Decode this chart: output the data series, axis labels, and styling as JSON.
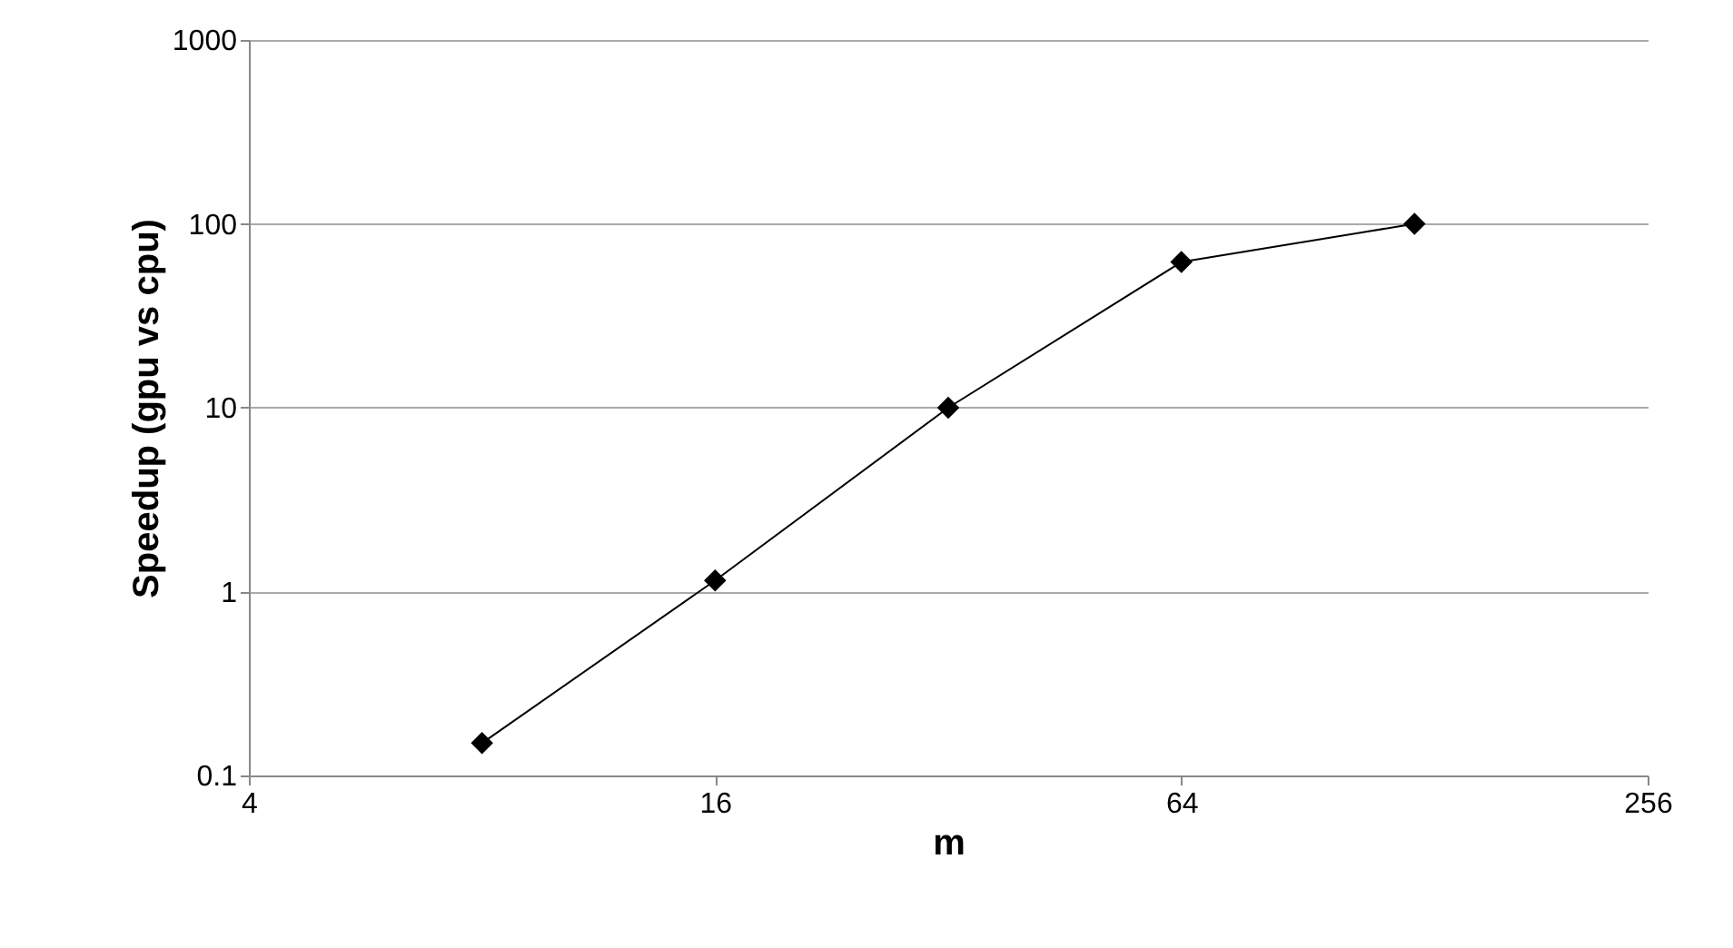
{
  "chart_data": {
    "type": "line",
    "xlabel": "m",
    "ylabel": "Speedup (gpu vs cpu)",
    "x": [
      8,
      16,
      32,
      64,
      128
    ],
    "series": [
      {
        "color": "#000000",
        "values": [
          0.15,
          1.15,
          10,
          62,
          100
        ]
      }
    ],
    "log": "xy",
    "xlim": [
      4,
      256
    ],
    "xticks": [
      4,
      16,
      64,
      256
    ],
    "ylim": [
      0.1,
      1000
    ],
    "yticks": [
      0.1,
      1,
      10,
      100,
      1000
    ],
    "grid": "y",
    "marker": "diamond",
    "line_style": "solid"
  }
}
